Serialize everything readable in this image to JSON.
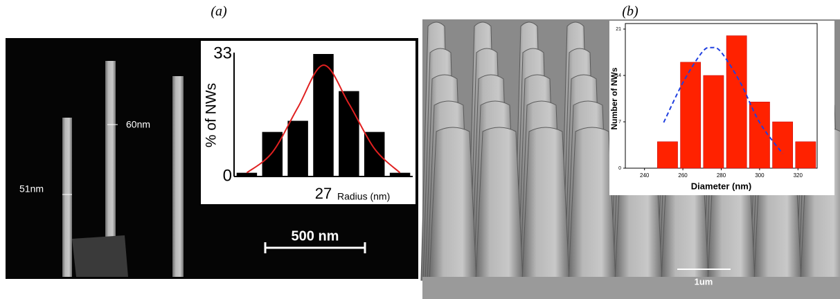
{
  "figure": {
    "panel_labels": [
      "(a)",
      "(b)"
    ],
    "annotations_a": [
      "60nm",
      "51nm",
      "500 nm"
    ],
    "annotations_b": [
      "1um"
    ]
  },
  "chart_data": [
    {
      "type": "bar",
      "ylabel": "% of NWs",
      "xlabel": "Radius (nm)",
      "categories": [
        null,
        null,
        null,
        "27",
        null,
        null,
        null
      ],
      "values": [
        1,
        12,
        15,
        33,
        23,
        12,
        1
      ],
      "color": "#000000",
      "ylim": [
        0,
        33
      ],
      "yticks": [
        0,
        33
      ],
      "fit_curve": {
        "color": "#e02020",
        "line_style": "solid",
        "values": [
          1,
          6.5,
          18.6,
          30,
          19.6,
          7.5,
          1
        ]
      }
    },
    {
      "type": "histogram",
      "ylabel": "Number of NWs",
      "xlabel": "Diameter (nm)",
      "bins": [
        246,
        258,
        270,
        282,
        294,
        306,
        318,
        330
      ],
      "values": [
        4,
        16,
        14,
        20,
        10,
        7,
        4
      ],
      "color": "#ff2200",
      "xlim": [
        230,
        330
      ],
      "xticks": [
        240,
        260,
        280,
        300,
        320
      ],
      "ylim": [
        0,
        21
      ],
      "yticks": [
        0,
        7,
        14,
        21
      ],
      "fit_curve": {
        "color": "#2040e0",
        "line_style": "dashed",
        "x": [
          250,
          260,
          270,
          275,
          280,
          290,
          300,
          312
        ],
        "values": [
          6.9,
          12.9,
          17.5,
          18.2,
          17.5,
          12.9,
          6.9,
          2.2
        ]
      }
    }
  ]
}
